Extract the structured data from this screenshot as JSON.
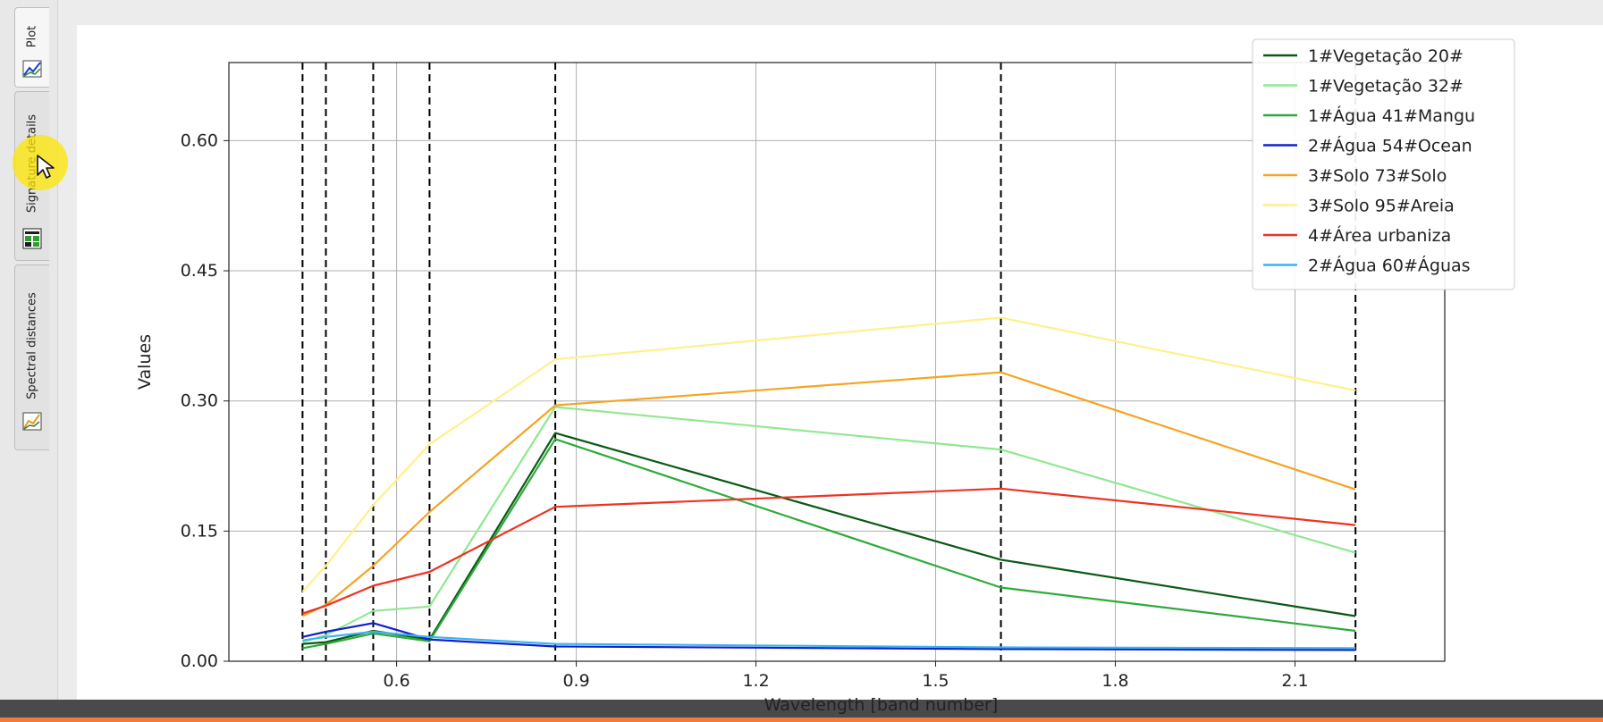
{
  "sidebar": {
    "tabs": [
      {
        "label": "Plot",
        "icon": "plot-icon",
        "active": true
      },
      {
        "label": "Signature details",
        "icon": "signature-details-icon",
        "active": false
      },
      {
        "label": "Spectral distances",
        "icon": "spectral-distances-icon",
        "active": false
      }
    ]
  },
  "colors": {
    "accent_bar": "#f07b3a",
    "cursor_highlight": "#ffe600"
  },
  "chart_data": {
    "type": "line",
    "xlabel": "Wavelength [band number]",
    "ylabel": "Values",
    "xlim": [
      0.32,
      2.35
    ],
    "ylim": [
      0,
      0.69
    ],
    "xticks": [
      0.6,
      0.9,
      1.2,
      1.5,
      1.8,
      2.1
    ],
    "xtick_labels": [
      "0.6",
      "0.9",
      "1.2",
      "1.5",
      "1.8",
      "2.1"
    ],
    "yticks": [
      0.0,
      0.15,
      0.3,
      0.45,
      0.6
    ],
    "ytick_labels": [
      "0.00",
      "0.15",
      "0.30",
      "0.45",
      "0.60"
    ],
    "grid": true,
    "legend_position": "top-right",
    "band_markers": [
      0.443,
      0.482,
      0.561,
      0.655,
      0.865,
      1.609,
      2.201
    ],
    "x": [
      0.443,
      0.482,
      0.561,
      0.655,
      0.865,
      1.609,
      2.201
    ],
    "series": [
      {
        "name": "1#Vegetação 20#",
        "color": "#0b5a14",
        "values": [
          0.02,
          0.022,
          0.035,
          0.025,
          0.263,
          0.117,
          0.052
        ]
      },
      {
        "name": "1#Vegetação 32#",
        "color": "#90e890",
        "values": [
          0.022,
          0.03,
          0.058,
          0.063,
          0.293,
          0.244,
          0.125
        ]
      },
      {
        "name": "1#Água 41#Mangu",
        "color": "#2eaa3a",
        "values": [
          0.015,
          0.02,
          0.032,
          0.023,
          0.256,
          0.085,
          0.035
        ]
      },
      {
        "name": "2#Água 54#Ocean",
        "color": "#1020cc",
        "values": [
          0.028,
          0.034,
          0.044,
          0.025,
          0.017,
          0.014,
          0.013
        ]
      },
      {
        "name": "3#Solo 73#Solo",
        "color": "#f5a422",
        "values": [
          0.052,
          0.065,
          0.11,
          0.172,
          0.295,
          0.333,
          0.198
        ]
      },
      {
        "name": "3#Solo 95#Areia",
        "color": "#fff08a",
        "values": [
          0.08,
          0.11,
          0.18,
          0.25,
          0.348,
          0.396,
          0.312
        ]
      },
      {
        "name": "4#Área urbaniza",
        "color": "#ee3322",
        "values": [
          0.055,
          0.064,
          0.087,
          0.103,
          0.178,
          0.199,
          0.157
        ]
      },
      {
        "name": "2#Água 60#Águas",
        "color": "#3ab4ee",
        "values": [
          0.024,
          0.028,
          0.034,
          0.028,
          0.02,
          0.016,
          0.015
        ]
      }
    ]
  }
}
